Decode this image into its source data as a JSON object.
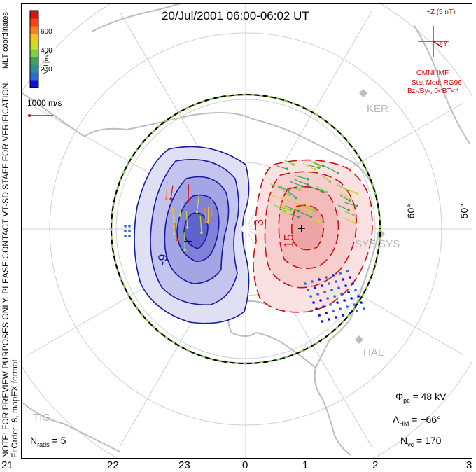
{
  "title": "20/Jul/2001 06:00-06:02 UT",
  "side_note": {
    "line1": "NOTE: FOR PREVIEW PURPOSES ONLY. PLEASE CONTACT VT-SD STAFF FOR VERIFICATION.",
    "line2": "FitOrder: 8, mapEX format"
  },
  "mlt_coordinates": "MLT coordinates",
  "colorbar": {
    "label": "Vel [m/s]",
    "ticks": [
      "600",
      "400",
      "200"
    ],
    "colors": [
      "#1010e0",
      "#2a6adf",
      "#2f8f8f",
      "#3aa55a",
      "#7fd33f",
      "#c8e020",
      "#ffc020",
      "#ff8020",
      "#ff4010",
      "#e01010"
    ]
  },
  "reference_vector": "1000 m/s",
  "imf": {
    "axis_z": "+Z (5 nT)",
    "axis_y": "+Y",
    "label": "OMNI IMF",
    "stat_mod": "Stat Mod: RG96",
    "bin": "Bz-/By-, 0<BT<4"
  },
  "stations": [
    "KER",
    "SYE SYS",
    "HAL",
    "TIG"
  ],
  "latitude_labels": [
    "-60°",
    "-50°"
  ],
  "mlt_labels": [
    "21",
    "22",
    "23",
    "0",
    "1",
    "2",
    "3"
  ],
  "contour_labels": [
    "-9",
    "3",
    "15"
  ],
  "extrema": {
    "min": "–",
    "max": "+"
  },
  "stats": {
    "pcp_sym": "Φ",
    "pcp_sub": "pc",
    "pcp_val": "= 48 kV",
    "hm_sym": "Λ",
    "hm_sub": "HM",
    "hm_val": "= −66°",
    "nvc_sym": "N",
    "nvc_sub": "vc",
    "nvc_val": "= 170",
    "nrads_sym": "N",
    "nrads_sub": "rads",
    "nrads_val": "= 5"
  },
  "colors": {
    "negative_contour": "#1a1aa0",
    "positive_contour": "#d01010",
    "boundary_green": "#7fd33f",
    "coast": "#bdbdbd",
    "grid": "#cfcfcf"
  }
}
